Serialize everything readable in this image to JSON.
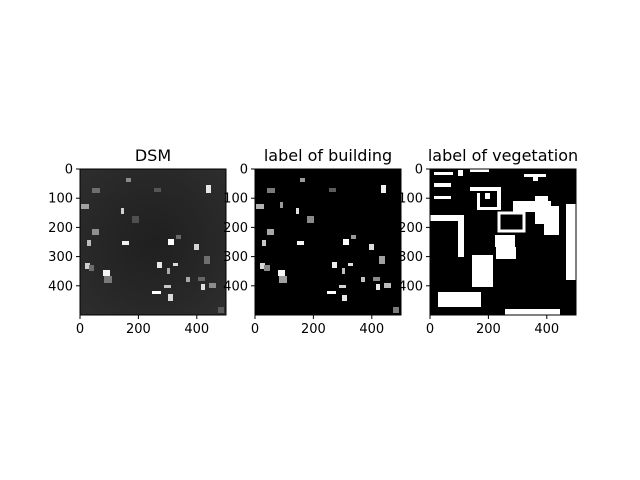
{
  "panels": [
    {
      "id": "dsm",
      "title": "DSM",
      "xticks": [
        "0",
        "200",
        "400"
      ],
      "yticks": [
        "0",
        "100",
        "200",
        "300",
        "400"
      ]
    },
    {
      "id": "building",
      "title": "label of building",
      "xticks": [
        "0",
        "200",
        "400"
      ],
      "yticks": [
        "0",
        "100",
        "200",
        "300",
        "400"
      ]
    },
    {
      "id": "vegetation",
      "title": "label of vegetation",
      "xticks": [
        "0",
        "200",
        "400"
      ],
      "yticks": [
        "0",
        "100",
        "200",
        "300",
        "400"
      ]
    }
  ]
}
